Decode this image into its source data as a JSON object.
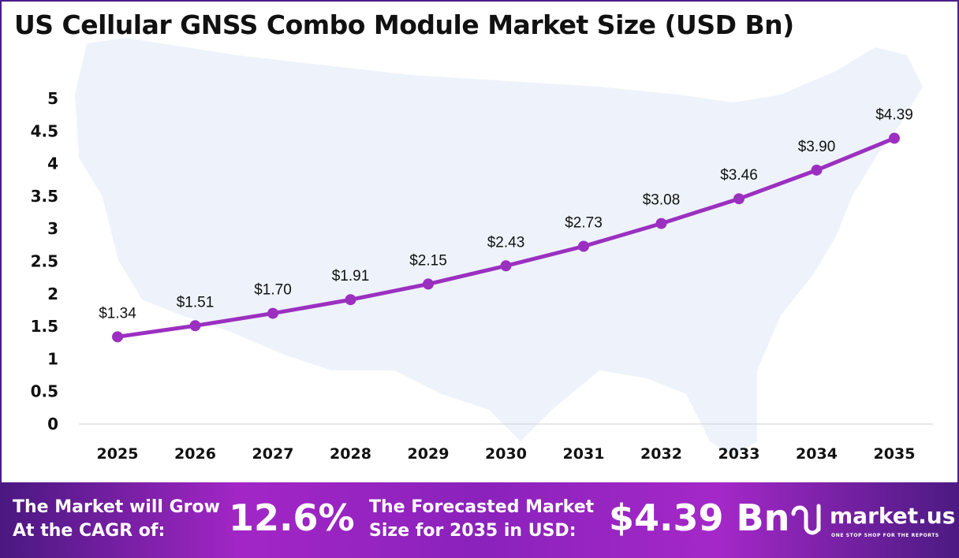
{
  "title": "US Cellular GNSS Combo Module Market Size (USD Bn)",
  "chart_data": {
    "type": "line",
    "title": "US Cellular GNSS Combo Module Market Size (USD Bn)",
    "categories": [
      "2025",
      "2026",
      "2027",
      "2028",
      "2029",
      "2030",
      "2031",
      "2032",
      "2033",
      "2034",
      "2035"
    ],
    "values": [
      1.34,
      1.51,
      1.7,
      1.91,
      2.15,
      2.43,
      2.73,
      3.08,
      3.46,
      3.9,
      4.39
    ],
    "data_labels": [
      "$1.34",
      "$1.51",
      "$1.70",
      "$1.91",
      "$2.15",
      "$2.43",
      "$2.73",
      "$3.08",
      "$3.46",
      "$3.90",
      "$4.39"
    ],
    "ylim": [
      0,
      5
    ],
    "yticks": [
      "0",
      "0.5",
      "1",
      "1.5",
      "2",
      "2.5",
      "3",
      "3.5",
      "4",
      "4.5",
      "5"
    ],
    "grid": false,
    "line_color": "#9b30c0",
    "xlabel": "",
    "ylabel": ""
  },
  "footer": {
    "cagr_label_line1": "The Market will Grow",
    "cagr_label_line2": "At the CAGR of:",
    "cagr_value": "12.6%",
    "forecast_label_line1": "The Forecasted Market",
    "forecast_label_line2": "Size for 2035 in USD:",
    "forecast_value": "$4.39 Bn",
    "logo_text": "market.us",
    "logo_tagline": "ONE STOP SHOP FOR THE REPORTS"
  }
}
